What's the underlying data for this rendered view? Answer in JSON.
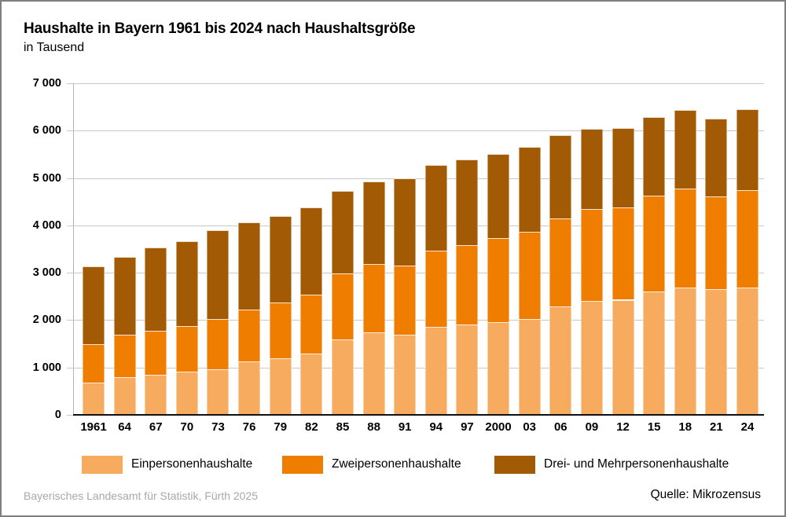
{
  "title": "Haushalte in Bayern 1961 bis 2024 nach Haushaltsgröße",
  "subtitle": "in Tausend",
  "footer": {
    "left": "Bayerisches Landesamt für Statistik, Fürth 2025",
    "right": "Quelle: Mikrozensus"
  },
  "colors": {
    "one_person": "#F6AB5F",
    "two_person": "#EF7D00",
    "three_plus_person": "#A25A04",
    "gridline": "#C9C9C9",
    "axis": "#B3B3B3",
    "baseline": "#111111",
    "footer_gray": "#A8A8A8"
  },
  "chart_data": {
    "type": "bar",
    "stacked": true,
    "title": "Haushalte in Bayern 1961 bis 2024 nach Haushaltsgröße",
    "subtitle": "in Tausend",
    "unit": "Tausend",
    "categories": [
      "1961",
      "64",
      "67",
      "70",
      "73",
      "76",
      "79",
      "82",
      "85",
      "88",
      "91",
      "94",
      "97",
      "2000",
      "03",
      "06",
      "09",
      "12",
      "15",
      "18",
      "21",
      "24"
    ],
    "series": [
      {
        "name": "Einpersonenhaushalte",
        "color": "#F6AB5F",
        "values": [
          680,
          790,
          850,
          910,
          960,
          1120,
          1200,
          1300,
          1600,
          1740,
          1690,
          1850,
          1910,
          1950,
          2030,
          2290,
          2400,
          2430,
          2600,
          2690,
          2660,
          2690
        ]
      },
      {
        "name": "Zweipersonenhaushalte",
        "color": "#EF7D00",
        "values": [
          810,
          900,
          930,
          960,
          1060,
          1110,
          1170,
          1230,
          1380,
          1440,
          1460,
          1610,
          1670,
          1780,
          1840,
          1850,
          1940,
          1950,
          2030,
          2090,
          1950,
          2050
        ]
      },
      {
        "name": "Drei- und Mehrpersonenhaushalte",
        "color": "#A25A04",
        "values": [
          1650,
          1640,
          1760,
          1800,
          1880,
          1840,
          1830,
          1850,
          1740,
          1740,
          1840,
          1820,
          1810,
          1780,
          1780,
          1770,
          1700,
          1670,
          1650,
          1660,
          1650,
          1710
        ]
      }
    ],
    "totals": [
      3140,
      3330,
      3540,
      3670,
      3900,
      4070,
      4200,
      4380,
      4720,
      4920,
      4990,
      5280,
      5390,
      5510,
      5650,
      5910,
      6040,
      6050,
      6280,
      6440,
      6260,
      6450
    ],
    "ylim": [
      0,
      7000
    ],
    "ytick_step": 1000,
    "ytick_labels_top_down": [
      "7 000",
      "6 000",
      "5 000",
      "4 000",
      "3 000",
      "2 000",
      "1 000",
      "0"
    ],
    "grid": true,
    "legend_position": "bottom"
  }
}
